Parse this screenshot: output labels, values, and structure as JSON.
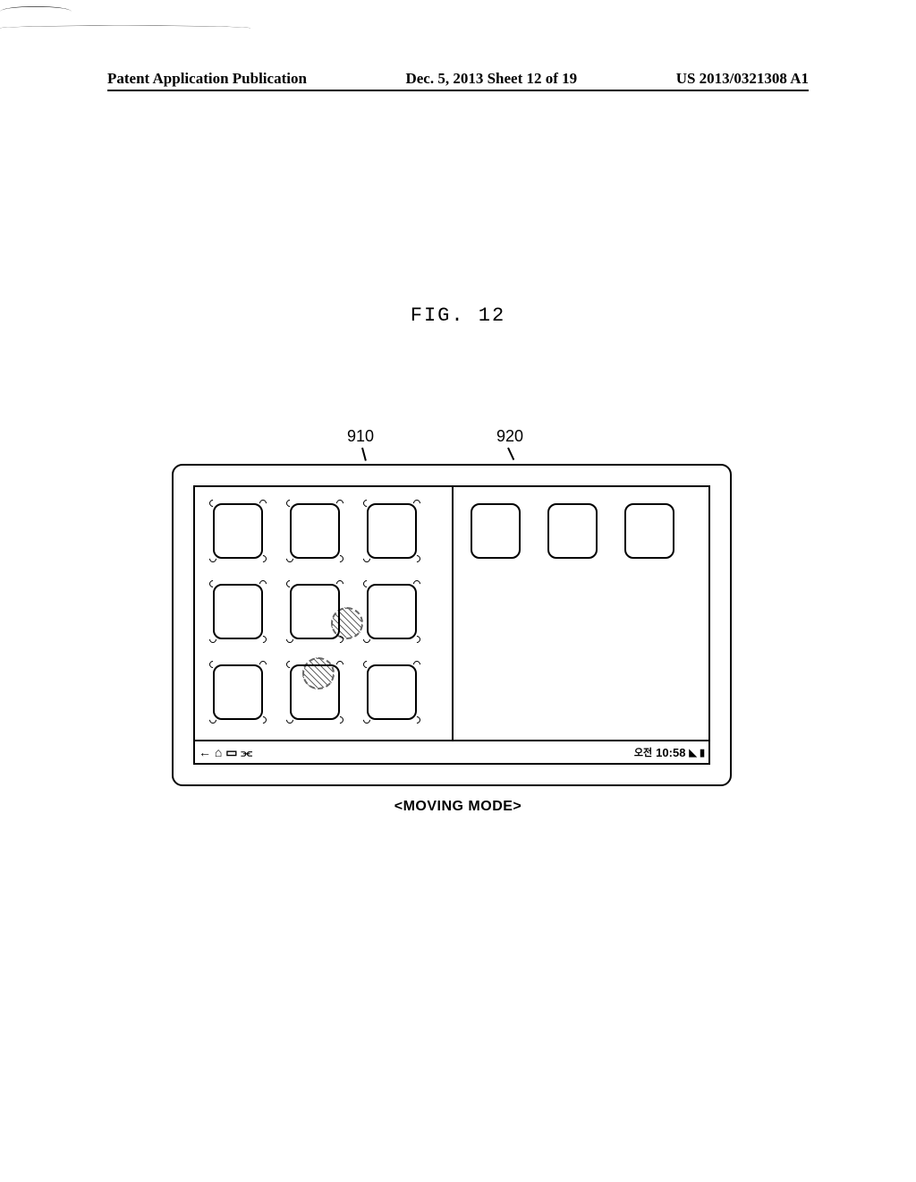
{
  "header": {
    "left": "Patent Application Publication",
    "center": "Dec. 5, 2013  Sheet 12 of 19",
    "right": "US 2013/0321308 A1"
  },
  "figure_label": "FIG. 12",
  "reference_numerals": {
    "left_panel": "910",
    "right_panel": "920"
  },
  "caption": "<MOVING MODE>",
  "status_bar": {
    "nav_icons": "← ⌂ ▭ ⫘",
    "time_prefix": "오전",
    "time": "10:58",
    "indicator_icons": "◣ ▮"
  },
  "grid": {
    "left_rows": 3,
    "left_cols": 3,
    "right_count": 3,
    "wiggle_left": true,
    "wiggle_right": false
  },
  "colors": {
    "line": "#000000",
    "background": "#ffffff"
  }
}
